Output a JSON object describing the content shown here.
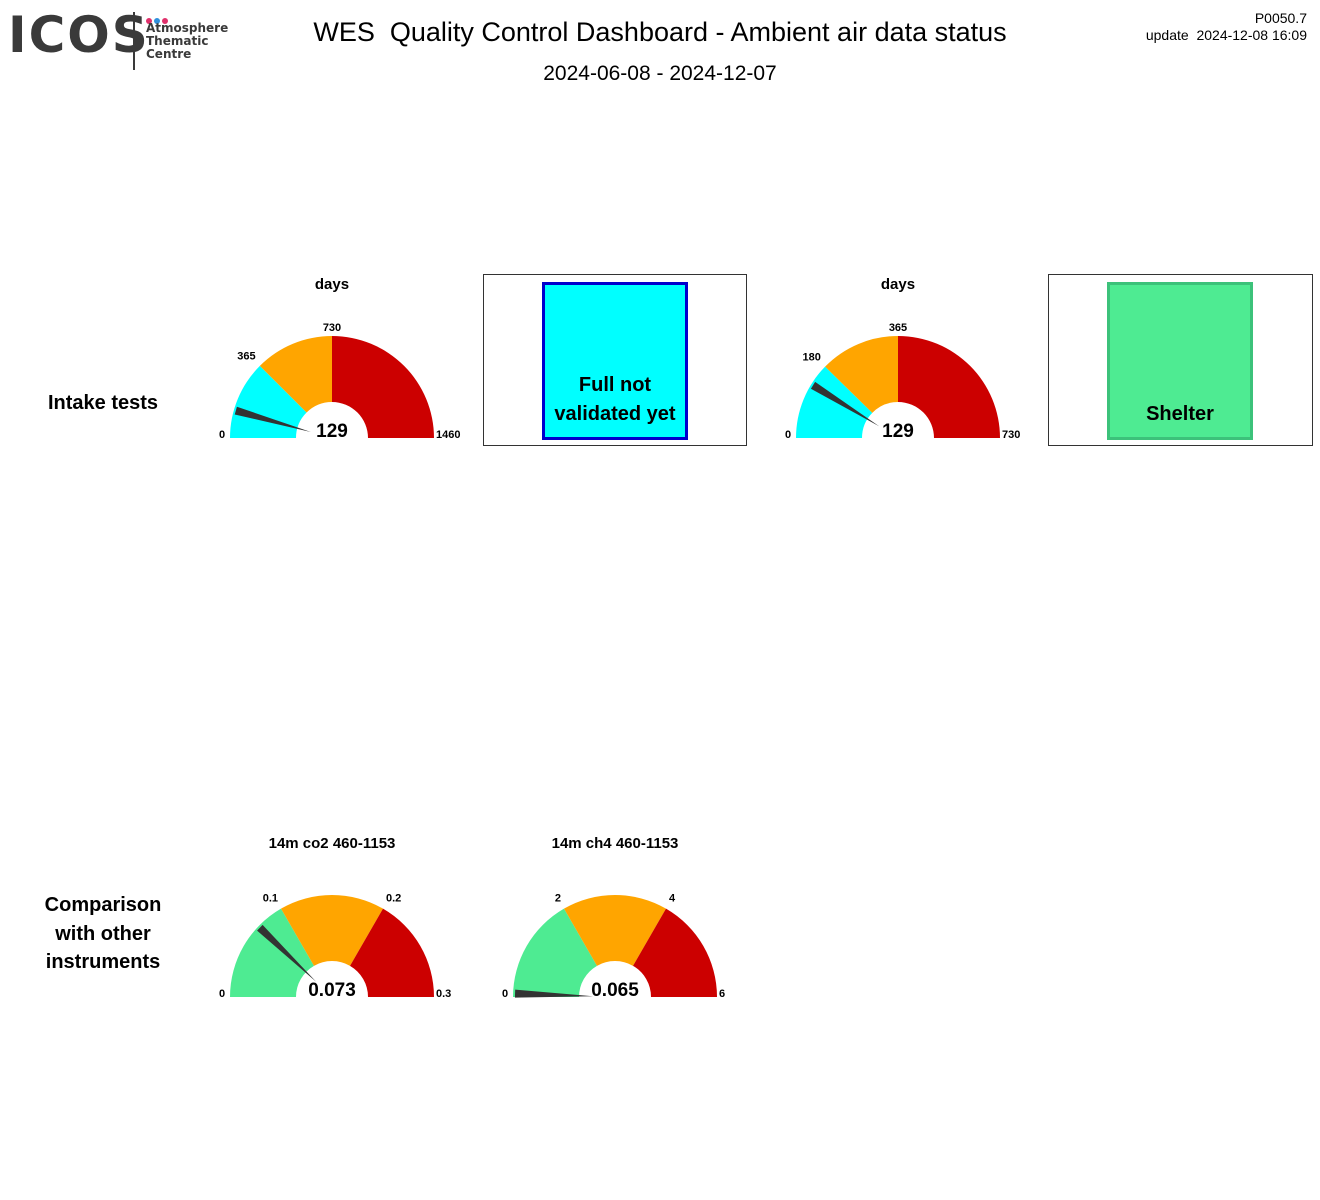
{
  "header": {
    "logo_text": "ICOS",
    "logo_sub": [
      "Atmosphere",
      "Thematic",
      "Centre"
    ],
    "logo_dot_colors": [
      "#e0306b",
      "#2f8fdc",
      "#e0306b"
    ],
    "title": "WES  Quality Control Dashboard - Ambient air data status",
    "date_range": "2024-06-08 - 2024-12-07",
    "version": "P0050.7",
    "update": "update  2024-12-08 16:09"
  },
  "rows": {
    "intake": {
      "label_lines": [
        "Intake tests"
      ]
    },
    "comparison": {
      "label_lines": [
        "Comparison",
        "with other",
        "instruments"
      ]
    }
  },
  "colors": {
    "cyan": "#00ffff",
    "orange": "#ffa500",
    "red": "#cc0000",
    "green": "#4eeb92",
    "needle": "#333333",
    "blue_border": "#0000cc",
    "green_border": "#3cc27a"
  },
  "chart_data": [
    {
      "type": "gauge",
      "title": "days",
      "min": 0,
      "max": 1460,
      "ticks": [
        "0",
        "365",
        "730",
        "1460"
      ],
      "tick_values": [
        0,
        365,
        730,
        1460
      ],
      "bands": [
        {
          "from": 0,
          "to": 365,
          "color": "#00ffff"
        },
        {
          "from": 365,
          "to": 730,
          "color": "#ffa500"
        },
        {
          "from": 730,
          "to": 1460,
          "color": "#cc0000"
        }
      ],
      "value": 129,
      "value_label": "129"
    },
    {
      "type": "status",
      "text_lines": [
        "Full not",
        "validated yet"
      ],
      "fill": "#00ffff",
      "border": "#0000cc"
    },
    {
      "type": "gauge",
      "title": "days",
      "min": 0,
      "max": 730,
      "ticks": [
        "0",
        "180",
        "365",
        "730"
      ],
      "tick_values": [
        0,
        180,
        365,
        730
      ],
      "bands": [
        {
          "from": 0,
          "to": 180,
          "color": "#00ffff"
        },
        {
          "from": 180,
          "to": 365,
          "color": "#ffa500"
        },
        {
          "from": 365,
          "to": 730,
          "color": "#cc0000"
        }
      ],
      "value": 129,
      "value_label": "129"
    },
    {
      "type": "status",
      "text_lines": [
        "Shelter"
      ],
      "fill": "#4eeb92",
      "border": "#3cc27a"
    },
    {
      "type": "gauge",
      "title": "14m co2 460-1153",
      "min": 0,
      "max": 0.3,
      "ticks": [
        "0",
        "0.1",
        "0.2",
        "0.3"
      ],
      "tick_values": [
        0,
        0.1,
        0.2,
        0.3
      ],
      "bands": [
        {
          "from": 0,
          "to": 0.1,
          "color": "#4eeb92"
        },
        {
          "from": 0.1,
          "to": 0.2,
          "color": "#ffa500"
        },
        {
          "from": 0.2,
          "to": 0.3,
          "color": "#cc0000"
        }
      ],
      "value": 0.073,
      "value_label": "0.073"
    },
    {
      "type": "gauge",
      "title": "14m ch4 460-1153",
      "min": 0,
      "max": 6,
      "ticks": [
        "0",
        "2",
        "4",
        "6"
      ],
      "tick_values": [
        0,
        2,
        4,
        6
      ],
      "bands": [
        {
          "from": 0,
          "to": 2,
          "color": "#4eeb92"
        },
        {
          "from": 2,
          "to": 4,
          "color": "#ffa500"
        },
        {
          "from": 4,
          "to": 6,
          "color": "#cc0000"
        }
      ],
      "value": 0.065,
      "value_label": "0.065"
    }
  ]
}
